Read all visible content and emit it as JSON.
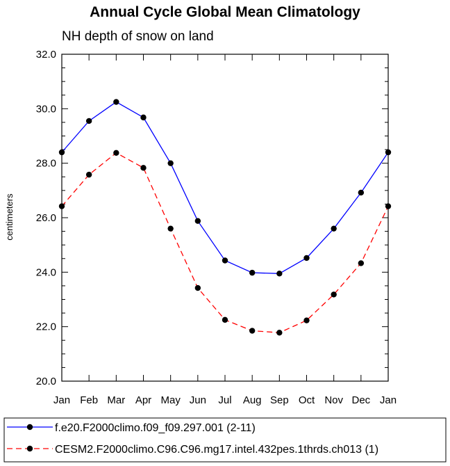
{
  "chart_data": {
    "type": "line",
    "title": "Annual Cycle Global Mean Climatology",
    "subtitle": "NH depth of snow on land",
    "xlabel": "",
    "ylabel": "centimeters",
    "categories": [
      "Jan",
      "Feb",
      "Mar",
      "Apr",
      "May",
      "Jun",
      "Jul",
      "Aug",
      "Sep",
      "Oct",
      "Nov",
      "Dec",
      "Jan"
    ],
    "ylim": [
      20.0,
      32.0
    ],
    "yticks": [
      "20.0",
      "22.0",
      "24.0",
      "26.0",
      "28.0",
      "30.0",
      "32.0"
    ],
    "ytick_values": [
      20,
      22,
      24,
      26,
      28,
      30,
      32
    ],
    "grid": false,
    "legend_position": "bottom",
    "series": [
      {
        "name": "f.e20.F2000climo.f09_f09.297.001 (2-11)",
        "color": "#0000ff",
        "dash": "solid",
        "values": [
          28.4,
          29.55,
          30.25,
          29.68,
          28.0,
          25.88,
          24.43,
          23.98,
          23.95,
          24.52,
          25.6,
          26.92,
          28.4
        ]
      },
      {
        "name": "CESM2.F2000climo.C96.C96.mg17.intel.432pes.1thrds.ch013 (1)",
        "color": "#ff0000",
        "dash": "dashed",
        "values": [
          26.42,
          27.58,
          28.38,
          27.83,
          25.6,
          23.42,
          22.25,
          21.85,
          21.78,
          22.23,
          23.18,
          24.33,
          26.42
        ]
      }
    ]
  }
}
